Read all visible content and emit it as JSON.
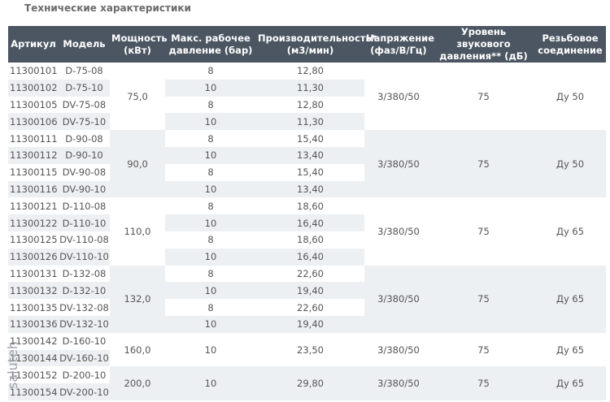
{
  "title": "Технические характеристики",
  "watermark": "saluteh",
  "table": {
    "header": [
      "Артикул",
      "Модель",
      "Мощность\n(кВт)",
      "Макс. рабочее\nдавление (бар)",
      "Производительность*\n(м3/мин)",
      "Напряжение\n(фаз/В/Гц)",
      "Уровень звукового\nдавления** (дБ)",
      "Резьбовое\nсоединение"
    ],
    "groups": [
      {
        "power": "75,0",
        "voltage": "3/380/50",
        "noise": "75",
        "thread": "Ду 50",
        "rows": [
          [
            "11300101",
            "D-75-08",
            "8",
            "12,80"
          ],
          [
            "11300102",
            "D-75-10",
            "10",
            "11,30"
          ],
          [
            "11300105",
            "DV-75-08",
            "8",
            "12,80"
          ],
          [
            "11300106",
            "DV-75-10",
            "10",
            "11,30"
          ]
        ]
      },
      {
        "power": "90,0",
        "voltage": "3/380/50",
        "noise": "75",
        "thread": "Ду 50",
        "rows": [
          [
            "11300111",
            "D-90-08",
            "8",
            "15,40"
          ],
          [
            "11300112",
            "D-90-10",
            "10",
            "13,40"
          ],
          [
            "11300115",
            "DV-90-08",
            "8",
            "15,40"
          ],
          [
            "11300116",
            "DV-90-10",
            "10",
            "13,40"
          ]
        ]
      },
      {
        "power": "110,0",
        "voltage": "3/380/50",
        "noise": "75",
        "thread": "Ду 65",
        "rows": [
          [
            "11300121",
            "D-110-08",
            "8",
            "18,60"
          ],
          [
            "11300122",
            "D-110-10",
            "10",
            "16,40"
          ],
          [
            "11300125",
            "DV-110-08",
            "8",
            "18,60"
          ],
          [
            "11300126",
            "DV-110-10",
            "10",
            "16,40"
          ]
        ]
      },
      {
        "power": "132,0",
        "voltage": "3/380/50",
        "noise": "75",
        "thread": "Ду 65",
        "rows": [
          [
            "11300131",
            "D-132-08",
            "8",
            "22,60"
          ],
          [
            "11300132",
            "D-132-10",
            "10",
            "19,40"
          ],
          [
            "11300135",
            "DV-132-08",
            "8",
            "22,60"
          ],
          [
            "11300136",
            "DV-132-10",
            "10",
            "19,40"
          ]
        ]
      },
      {
        "power": "160,0",
        "pressure": "10",
        "flow": "23,50",
        "voltage": "3/380/50",
        "noise": "75",
        "thread": "Ду 65",
        "rows": [
          [
            "11300142",
            "D-160-10"
          ],
          [
            "11300144",
            "DV-160-10"
          ]
        ]
      },
      {
        "power": "200,0",
        "pressure": "10",
        "flow": "29,80",
        "voltage": "3/380/50",
        "noise": "75",
        "thread": "Ду 65",
        "rows": [
          [
            "11300152",
            "D-200-10"
          ],
          [
            "11300154",
            "DV-200-10"
          ]
        ]
      }
    ]
  }
}
